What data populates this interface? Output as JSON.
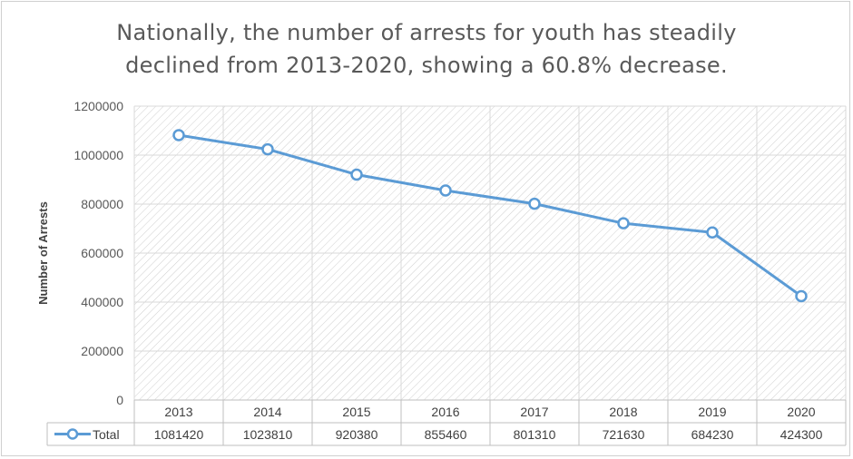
{
  "chart_data": {
    "type": "line",
    "title_lines": [
      "Nationally, the number of arrests for youth has steadily",
      "declined from 2013-2020, showing a 60.8% decrease."
    ],
    "xlabel": "",
    "ylabel": "Number of Arrests",
    "categories": [
      "2013",
      "2014",
      "2015",
      "2016",
      "2017",
      "2018",
      "2019",
      "2020"
    ],
    "series": [
      {
        "name": "Total",
        "values": [
          1081420,
          1023810,
          920380,
          855460,
          801310,
          721630,
          684230,
          424300
        ]
      }
    ],
    "ylim": [
      0,
      1200000
    ],
    "yticks": [
      0,
      200000,
      400000,
      600000,
      800000,
      1000000,
      1200000
    ],
    "grid": true,
    "data_table": true,
    "line_color": "#5b9bd5",
    "marker": "hollow-circle"
  }
}
